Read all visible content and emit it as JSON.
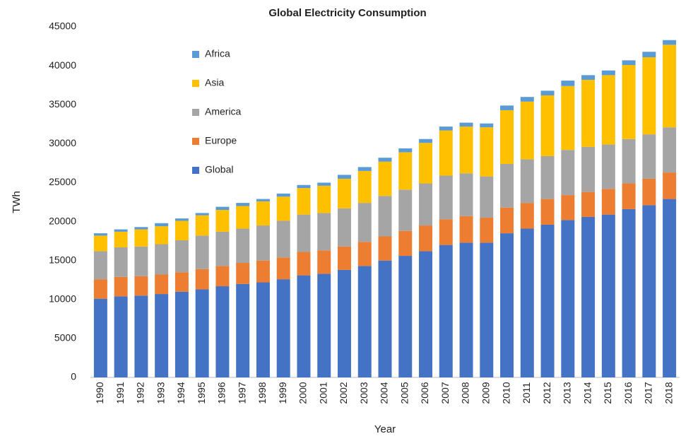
{
  "chart_data": {
    "type": "stacked_bar",
    "title": "Global Electricity Consumption",
    "x_label": "Year",
    "y_label": "TWh",
    "categories": [
      "1990",
      "1991",
      "1992",
      "1993",
      "1994",
      "1995",
      "1996",
      "1997",
      "1998",
      "1999",
      "2000",
      "2001",
      "2002",
      "2003",
      "2004",
      "2005",
      "2006",
      "2007",
      "2008",
      "2009",
      "2010",
      "2011",
      "2012",
      "2013",
      "2014",
      "2015",
      "2016",
      "2017",
      "2018"
    ],
    "series": [
      {
        "name": "Global",
        "color": "#4472c4",
        "values": [
          10100,
          10400,
          10500,
          10700,
          11000,
          11300,
          11700,
          12000,
          12200,
          12600,
          13100,
          13300,
          13800,
          14300,
          15000,
          15600,
          16200,
          17000,
          17300,
          17300,
          18500,
          19100,
          19600,
          20200,
          20600,
          20900,
          21600,
          22100,
          22900
        ]
      },
      {
        "name": "Europe",
        "color": "#ed7d31",
        "values": [
          2500,
          2500,
          2500,
          2500,
          2500,
          2600,
          2600,
          2700,
          2800,
          2800,
          3000,
          3000,
          3000,
          3100,
          3100,
          3200,
          3300,
          3300,
          3400,
          3200,
          3300,
          3300,
          3300,
          3200,
          3200,
          3300,
          3300,
          3400,
          3400
        ]
      },
      {
        "name": "America",
        "color": "#a5a5a5",
        "values": [
          3600,
          3800,
          3800,
          3900,
          4100,
          4300,
          4400,
          4400,
          4500,
          4700,
          4800,
          4800,
          4900,
          5000,
          5200,
          5300,
          5400,
          5600,
          5500,
          5300,
          5600,
          5600,
          5500,
          5800,
          5800,
          5700,
          5700,
          5700,
          5800
        ]
      },
      {
        "name": "Asia",
        "color": "#ffc000",
        "values": [
          2000,
          2000,
          2200,
          2300,
          2500,
          2600,
          2800,
          2900,
          3100,
          3100,
          3400,
          3500,
          3800,
          4100,
          4400,
          4800,
          5200,
          5800,
          6000,
          6300,
          6900,
          7400,
          7800,
          8200,
          8600,
          8900,
          9500,
          9900,
          10600
        ]
      },
      {
        "name": "Africa",
        "color": "#5b9bd5",
        "values": [
          300,
          300,
          300,
          400,
          300,
          300,
          400,
          400,
          300,
          400,
          400,
          400,
          500,
          500,
          500,
          500,
          500,
          500,
          500,
          500,
          600,
          600,
          600,
          700,
          600,
          600,
          600,
          700,
          600
        ]
      }
    ],
    "ylim": [
      0,
      45000
    ],
    "yticks": [
      0,
      5000,
      10000,
      15000,
      20000,
      25000,
      30000,
      35000,
      40000,
      45000
    ],
    "grid": false,
    "legend": "upper left"
  }
}
